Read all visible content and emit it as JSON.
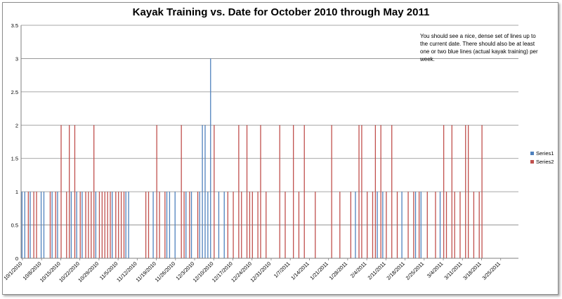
{
  "chart_data": {
    "type": "bar",
    "title": "Kayak  Training vs. Date for October 2010 through May 2011",
    "annotation": "You should see a nice, dense set of lines up to the current date. There should also be at least one or two blue lines (actual kayak training) per week.",
    "xlabel": "",
    "ylabel": "",
    "ylim": [
      0,
      3.5
    ],
    "yticks": [
      "0",
      "0.5",
      "1",
      "1.5",
      "2",
      "2.5",
      "3",
      "3.5"
    ],
    "x_start": "10/1/2010",
    "x_end": "3/31/2011",
    "x_tick_labels": [
      "10/1/2010",
      "10/8/2010",
      "10/15/2010",
      "10/22/2010",
      "10/29/2010",
      "11/5/2010",
      "11/12/2010",
      "11/19/2010",
      "11/26/2010",
      "12/3/2010",
      "12/10/2010",
      "12/17/2010",
      "12/24/2010",
      "12/31/2010",
      "1/7/2011",
      "1/14/2011",
      "1/21/2011",
      "1/28/2011",
      "2/4/2011",
      "2/11/2011",
      "2/18/2011",
      "2/25/2011",
      "3/4/2011",
      "3/11/2011",
      "3/18/2011",
      "3/25/2011"
    ],
    "grid": true,
    "legend_position": "right",
    "series": [
      {
        "name": "Series1",
        "color": "#4f81bd",
        "points": [
          [
            "10/1/2010",
            1
          ],
          [
            "10/2/2010",
            1
          ],
          [
            "10/4/2010",
            1
          ],
          [
            "10/8/2010",
            1
          ],
          [
            "10/9/2010",
            1
          ],
          [
            "10/12/2010",
            1
          ],
          [
            "10/14/2010",
            1
          ],
          [
            "10/19/2010",
            1
          ],
          [
            "10/21/2010",
            1
          ],
          [
            "10/23/2010",
            1
          ],
          [
            "10/28/2010",
            1
          ],
          [
            "11/3/2010",
            1
          ],
          [
            "11/8/2010",
            1
          ],
          [
            "11/9/2010",
            1
          ],
          [
            "11/18/2010",
            1
          ],
          [
            "11/23/2010",
            1
          ],
          [
            "11/24/2010",
            1
          ],
          [
            "11/26/2010",
            1
          ],
          [
            "11/30/2010",
            1
          ],
          [
            "12/2/2010",
            1
          ],
          [
            "12/5/2010",
            1
          ],
          [
            "12/6/2010",
            2
          ],
          [
            "12/7/2010",
            2
          ],
          [
            "12/8/2010",
            1
          ],
          [
            "12/9/2010",
            3
          ],
          [
            "12/12/2010",
            1
          ],
          [
            "12/14/2010",
            1
          ],
          [
            "1/31/2011",
            1
          ],
          [
            "2/8/2011",
            1
          ],
          [
            "2/10/2011",
            1
          ],
          [
            "2/17/2011",
            1
          ],
          [
            "2/22/2011",
            1
          ],
          [
            "2/24/2011",
            1
          ],
          [
            "3/3/2011",
            1
          ]
        ]
      },
      {
        "name": "Series2",
        "color": "#c0504d",
        "points": [
          [
            "10/3/2010",
            1
          ],
          [
            "10/5/2010",
            1
          ],
          [
            "10/6/2010",
            1
          ],
          [
            "10/11/2010",
            1
          ],
          [
            "10/13/2010",
            1
          ],
          [
            "10/15/2010",
            2
          ],
          [
            "10/17/2010",
            1
          ],
          [
            "10/18/2010",
            2
          ],
          [
            "10/20/2010",
            2
          ],
          [
            "10/22/2010",
            1
          ],
          [
            "10/24/2010",
            1
          ],
          [
            "10/25/2010",
            1
          ],
          [
            "10/26/2010",
            1
          ],
          [
            "10/27/2010",
            2
          ],
          [
            "10/29/2010",
            1
          ],
          [
            "10/30/2010",
            1
          ],
          [
            "10/31/2010",
            1
          ],
          [
            "11/1/2010",
            1
          ],
          [
            "11/2/2010",
            1
          ],
          [
            "11/4/2010",
            1
          ],
          [
            "11/5/2010",
            1
          ],
          [
            "11/6/2010",
            1
          ],
          [
            "11/7/2010",
            1
          ],
          [
            "11/15/2010",
            1
          ],
          [
            "11/16/2010",
            1
          ],
          [
            "11/19/2010",
            2
          ],
          [
            "11/20/2010",
            1
          ],
          [
            "11/22/2010",
            1
          ],
          [
            "11/28/2010",
            2
          ],
          [
            "11/29/2010",
            1
          ],
          [
            "12/1/2010",
            1
          ],
          [
            "12/4/2010",
            1
          ],
          [
            "12/10/2010",
            2
          ],
          [
            "12/15/2010",
            1
          ],
          [
            "12/17/2010",
            1
          ],
          [
            "12/19/2010",
            2
          ],
          [
            "12/20/2010",
            1
          ],
          [
            "12/22/2010",
            2
          ],
          [
            "12/23/2010",
            1
          ],
          [
            "12/24/2010",
            1
          ],
          [
            "12/26/2010",
            1
          ],
          [
            "12/27/2010",
            2
          ],
          [
            "12/29/2010",
            1
          ],
          [
            "1/3/2011",
            2
          ],
          [
            "1/5/2011",
            1
          ],
          [
            "1/8/2011",
            2
          ],
          [
            "1/10/2011",
            1
          ],
          [
            "1/12/2011",
            2
          ],
          [
            "1/16/2011",
            1
          ],
          [
            "1/22/2011",
            2
          ],
          [
            "1/25/2011",
            1
          ],
          [
            "1/29/2011",
            1
          ],
          [
            "2/1/2011",
            2
          ],
          [
            "2/2/2011",
            2
          ],
          [
            "2/4/2011",
            1
          ],
          [
            "2/6/2011",
            1
          ],
          [
            "2/7/2011",
            2
          ],
          [
            "2/9/2011",
            2
          ],
          [
            "2/11/2011",
            1
          ],
          [
            "2/13/2011",
            2
          ],
          [
            "2/15/2011",
            1
          ],
          [
            "2/19/2011",
            1
          ],
          [
            "2/21/2011",
            1
          ],
          [
            "2/23/2011",
            1
          ],
          [
            "2/26/2011",
            1
          ],
          [
            "3/1/2011",
            1
          ],
          [
            "3/4/2011",
            2
          ],
          [
            "3/5/2011",
            1
          ],
          [
            "3/7/2011",
            2
          ],
          [
            "3/8/2011",
            1
          ],
          [
            "3/10/2011",
            1
          ],
          [
            "3/12/2011",
            2
          ],
          [
            "3/13/2011",
            2
          ],
          [
            "3/15/2011",
            1
          ],
          [
            "3/17/2011",
            1
          ],
          [
            "3/18/2011",
            2
          ]
        ]
      }
    ]
  }
}
